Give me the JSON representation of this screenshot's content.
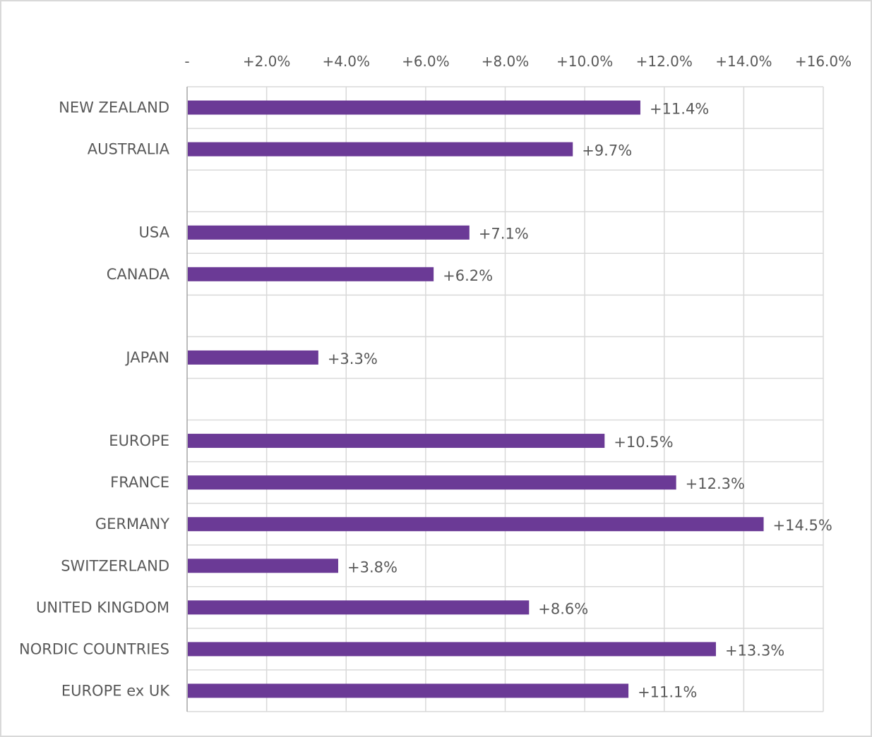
{
  "chart_data": {
    "type": "bar",
    "orientation": "horizontal",
    "xlim": [
      0,
      16
    ],
    "x_ticks": [
      0,
      2,
      4,
      6,
      8,
      10,
      12,
      14,
      16
    ],
    "x_tick_labels": [
      "-",
      "+2.0%",
      "+4.0%",
      "+6.0%",
      "+8.0%",
      "+10.0%",
      "+12.0%",
      "+14.0%",
      "+16.0%"
    ],
    "x_axis_position": "top",
    "grid": true,
    "bar_color": "#6b3a96",
    "categories": [
      "NEW ZEALAND",
      "AUSTRALIA",
      "",
      "USA",
      "CANADA",
      "",
      "JAPAN",
      "",
      "EUROPE",
      "FRANCE",
      "GERMANY",
      "SWITZERLAND",
      "UNITED KINGDOM",
      "NORDIC COUNTRIES",
      "EUROPE ex UK"
    ],
    "values": [
      11.4,
      9.7,
      null,
      7.1,
      6.2,
      null,
      3.3,
      null,
      10.5,
      12.3,
      14.5,
      3.8,
      8.6,
      13.3,
      11.1
    ],
    "data_labels": [
      "+11.4%",
      "+9.7%",
      "",
      "+7.1%",
      "+6.2%",
      "",
      "+3.3%",
      "",
      "+10.5%",
      "+12.3%",
      "+14.5%",
      "+3.8%",
      "+8.6%",
      "+13.3%",
      "+11.1%"
    ]
  }
}
